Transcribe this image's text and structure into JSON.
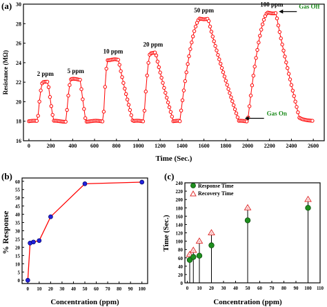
{
  "chart_data": [
    {
      "panel_label": "(a)",
      "type": "line",
      "xlabel": "Time (Sec.)",
      "ylabel": "Resistance (MΩ)",
      "xlim": [
        -50,
        2700
      ],
      "ylim": [
        16,
        30
      ],
      "x_ticks": [
        0,
        200,
        400,
        600,
        800,
        1000,
        1200,
        1400,
        1600,
        1800,
        2000,
        2200,
        2400,
        2600
      ],
      "y_ticks": [
        16,
        18,
        20,
        22,
        24,
        26,
        28,
        30
      ],
      "grid": false,
      "marker": "circle",
      "baseline": 18.0,
      "cycles": [
        {
          "label": "2 ppm",
          "on": 80,
          "peak_start": 125,
          "peak_end": 175,
          "off": 225,
          "peak": 22.0
        },
        {
          "label": "5 ppm",
          "on": 340,
          "peak_start": 385,
          "peak_end": 470,
          "off": 520,
          "peak": 22.3
        },
        {
          "label": "10 ppm",
          "on": 680,
          "peak_start": 720,
          "peak_end": 820,
          "off": 950,
          "peak": 24.3
        },
        {
          "label": "20 ppm",
          "on": 1050,
          "peak_start": 1110,
          "peak_end": 1160,
          "off": 1320,
          "peak": 25.0
        },
        {
          "label": "50 ppm",
          "on": 1380,
          "peak_start": 1560,
          "peak_end": 1640,
          "off": 1920,
          "peak": 28.5
        },
        {
          "label": "100 ppm",
          "on": 2000,
          "peak_start": 2180,
          "peak_end": 2260,
          "off": 2480,
          "peak": 29.1
        }
      ],
      "annotations": [
        {
          "text": "Gas Off",
          "x": 2260,
          "y": 29.1
        },
        {
          "text": "Gas On",
          "x": 1960,
          "y": 18.3
        }
      ],
      "colors": {
        "series": "#ff0000",
        "marker_fill": "#ffffff",
        "annotation": "#1a8a1a"
      }
    },
    {
      "panel_label": "(b)",
      "type": "line",
      "xlabel": "Concentration (ppm)",
      "ylabel": "% Response",
      "xlim": [
        -5,
        105
      ],
      "ylim": [
        -2,
        62
      ],
      "x_ticks": [
        0,
        10,
        20,
        30,
        40,
        50,
        60,
        70,
        80,
        90,
        100
      ],
      "y_ticks": [
        0,
        5,
        10,
        15,
        20,
        25,
        30,
        35,
        40,
        45,
        50,
        55,
        60
      ],
      "x": [
        0,
        2,
        5,
        10,
        20,
        50,
        100
      ],
      "values": [
        0,
        22.5,
        23.2,
        24,
        38.5,
        58.5,
        59.5
      ],
      "grid": false,
      "colors": {
        "line": "#ff0000",
        "marker": "#2222dd"
      }
    },
    {
      "panel_label": "(c)",
      "type": "scatter",
      "xlabel": "Concentration (ppm)",
      "ylabel": "Time (Sec.)",
      "xlim": [
        -2,
        110
      ],
      "ylim": [
        0,
        240
      ],
      "x_ticks": [
        0,
        10,
        20,
        30,
        40,
        50,
        60,
        70,
        80,
        90,
        100,
        110
      ],
      "y_ticks": [
        0,
        20,
        40,
        60,
        80,
        100,
        120,
        140,
        160,
        180,
        200,
        220,
        240
      ],
      "x": [
        2,
        5,
        10,
        20,
        50,
        100
      ],
      "series": [
        {
          "name": "Response Time",
          "values": [
            55,
            62,
            65,
            90,
            150,
            180
          ],
          "color": "#1e8f1e",
          "marker": "circle"
        },
        {
          "name": "Recovery Time",
          "values": [
            68,
            78,
            100,
            120,
            180,
            200
          ],
          "color": "#e03030",
          "marker": "triangle"
        }
      ],
      "stems": true,
      "legend_position": "top-left",
      "grid": false
    }
  ]
}
